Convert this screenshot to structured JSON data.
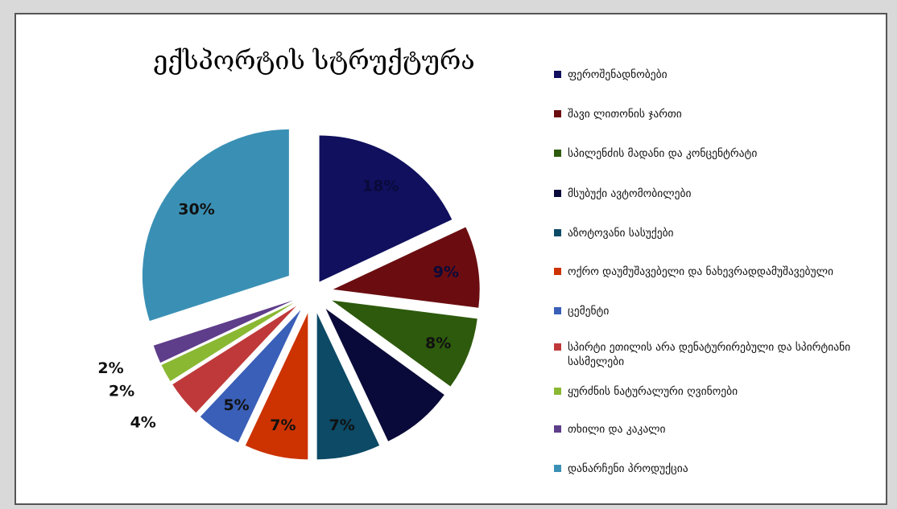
{
  "chart_data": {
    "type": "pie",
    "title": "ექსპორტის სტრუქტურა",
    "legend_position": "right",
    "slices": [
      {
        "label": "ფეროშენადნობები",
        "value": 18,
        "value_label": "18%",
        "color": "#10105e"
      },
      {
        "label": "შავი ლითონის ჯართი",
        "value": 9,
        "value_label": "9%",
        "color": "#6b0d10"
      },
      {
        "label": "სპილენძის მადანი და კონცენტრატი",
        "value": 8,
        "value_label": "8%",
        "color": "#2d5a0c"
      },
      {
        "label": "მსუბუქი ავტომობილები",
        "value": 8,
        "value_label": "8%",
        "color": "#0a0a3a"
      },
      {
        "label": "აზოტოვანი სასუქები",
        "value": 7,
        "value_label": "7%",
        "color": "#0c4a66"
      },
      {
        "label": "ოქრო დაუმუშავებელი და ნახევრადდამუშავებული",
        "value": 7,
        "value_label": "7%",
        "color": "#cc3300"
      },
      {
        "label": "ცემენტი",
        "value": 5,
        "value_label": "5%",
        "color": "#3a5fb8"
      },
      {
        "label": "სპირტი ეთილის არა დენატურირებული და სპირტიანი სასმელები",
        "value": 4,
        "value_label": "4%",
        "color": "#c0393a"
      },
      {
        "label": "ყურძნის ნატურალური ღვინოები",
        "value": 2,
        "value_label": "2%",
        "color": "#8ab833"
      },
      {
        "label": "თხილი და კაკალი",
        "value": 2,
        "value_label": "2%",
        "color": "#5e3d8a"
      },
      {
        "label": "დანარჩენი პროდუქცია",
        "value": 30,
        "value_label": "30%",
        "color": "#3a90b4"
      }
    ]
  }
}
